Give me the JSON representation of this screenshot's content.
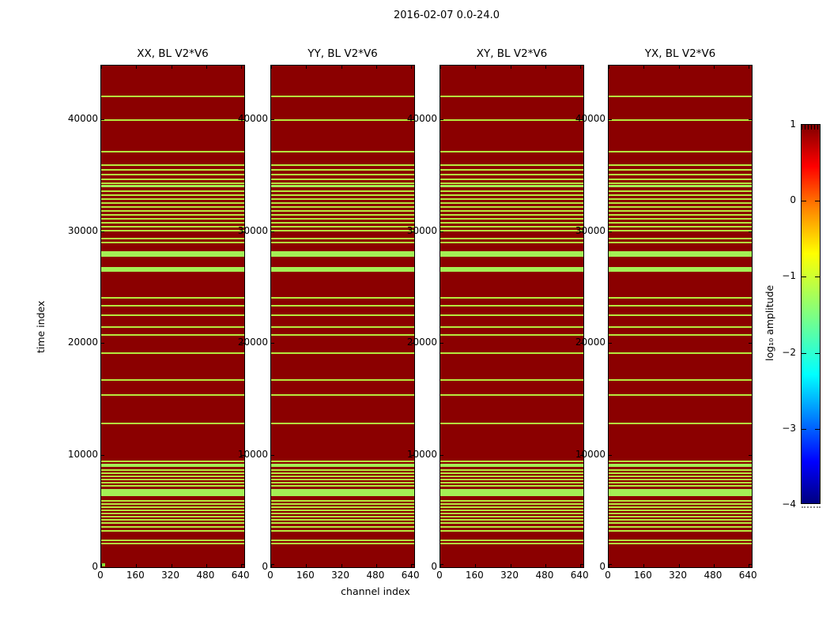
{
  "figure": {
    "background": "#ffffff",
    "frame_color": "#000000"
  },
  "chart_data": {
    "type": "heatmap",
    "title": "2016-02-07 0.0-24.0",
    "panels": [
      "XX, BL V2*V6",
      "YY, BL V2*V6",
      "XY, BL V2*V6",
      "YX, BL V2*V6"
    ],
    "xlabel": "channel index",
    "ylabel": "time index",
    "xlim": [
      0,
      650
    ],
    "ylim": [
      0,
      44780
    ],
    "xticks": [
      0,
      160,
      320,
      480,
      640
    ],
    "yticks": [
      0,
      10000,
      20000,
      30000,
      40000
    ],
    "grid": false,
    "colormap": "jet",
    "colorbar": {
      "label": "log₁₀ amplitude",
      "ticks": [
        1,
        0,
        -1,
        -2,
        -3,
        -4
      ],
      "range": [
        -4,
        1
      ],
      "position": "right"
    },
    "background_level": 1,
    "stripe_level": -1.5,
    "stripe_note": "horizontal low-amplitude (green) time rows spanning all channels; identical pattern in all four panels; format [time_index_center, time_width]",
    "stripes": [
      [
        42030,
        140
      ],
      [
        39910,
        140
      ],
      [
        37090,
        140
      ],
      [
        35900,
        140
      ],
      [
        35470,
        110
      ],
      [
        35050,
        140
      ],
      [
        34630,
        110
      ],
      [
        34270,
        110
      ],
      [
        34030,
        210
      ],
      [
        33570,
        110
      ],
      [
        33210,
        110
      ],
      [
        32860,
        110
      ],
      [
        32510,
        110
      ],
      [
        32160,
        110
      ],
      [
        31800,
        110
      ],
      [
        31450,
        110
      ],
      [
        31100,
        110
      ],
      [
        30750,
        110
      ],
      [
        30390,
        110
      ],
      [
        30040,
        140
      ],
      [
        29340,
        140
      ],
      [
        28980,
        140
      ],
      [
        27960,
        490
      ],
      [
        26590,
        420
      ],
      [
        24050,
        140
      ],
      [
        23340,
        140
      ],
      [
        22500,
        140
      ],
      [
        21440,
        140
      ],
      [
        20730,
        140
      ],
      [
        19110,
        140
      ],
      [
        16710,
        140
      ],
      [
        15370,
        140
      ],
      [
        12830,
        140
      ],
      [
        9450,
        140
      ],
      [
        9100,
        280
      ],
      [
        8670,
        110
      ],
      [
        8390,
        110
      ],
      [
        8110,
        110
      ],
      [
        7830,
        110
      ],
      [
        7550,
        110
      ],
      [
        7260,
        110
      ],
      [
        6660,
        630
      ],
      [
        5920,
        110
      ],
      [
        5640,
        110
      ],
      [
        5360,
        110
      ],
      [
        5080,
        110
      ],
      [
        4800,
        110
      ],
      [
        4510,
        110
      ],
      [
        4230,
        110
      ],
      [
        3950,
        110
      ],
      [
        3600,
        140
      ],
      [
        3240,
        140
      ],
      [
        2400,
        140
      ],
      [
        2120,
        140
      ]
    ],
    "corner_block": {
      "panel": "XX, BL V2*V6",
      "channel_range": [
        0,
        14
      ],
      "time_range": [
        0,
        300
      ],
      "level": -1.5
    },
    "colors": {
      "background_red": "#8b0000",
      "stripe_green": "#b5e93e",
      "stripe_bright_green": "#a4ef55"
    }
  }
}
